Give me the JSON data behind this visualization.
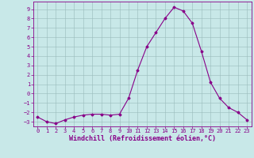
{
  "xlabel": "Windchill (Refroidissement éolien,°C)",
  "x": [
    0,
    1,
    2,
    3,
    4,
    5,
    6,
    7,
    8,
    9,
    10,
    11,
    12,
    13,
    14,
    15,
    16,
    17,
    18,
    19,
    20,
    21,
    22,
    23
  ],
  "y": [
    -2.5,
    -3.0,
    -3.2,
    -2.8,
    -2.5,
    -2.3,
    -2.2,
    -2.2,
    -2.3,
    -2.2,
    -0.5,
    2.5,
    5.0,
    6.5,
    8.0,
    9.2,
    8.8,
    7.5,
    4.5,
    1.2,
    -0.5,
    -1.5,
    -2.0,
    -2.8
  ],
  "line_color": "#880088",
  "marker": "D",
  "marker_size": 1.5,
  "bg_color": "#c8e8e8",
  "grid_color": "#99bbbb",
  "ylim": [
    -3.5,
    9.8
  ],
  "xlim": [
    -0.5,
    23.5
  ],
  "yticks": [
    -3,
    -2,
    -1,
    0,
    1,
    2,
    3,
    4,
    5,
    6,
    7,
    8,
    9
  ],
  "xticks": [
    0,
    1,
    2,
    3,
    4,
    5,
    6,
    7,
    8,
    9,
    10,
    11,
    12,
    13,
    14,
    15,
    16,
    17,
    18,
    19,
    20,
    21,
    22,
    23
  ],
  "tick_color": "#880088",
  "label_color": "#880088",
  "spine_color": "#880088",
  "font_size": 5.0,
  "xlabel_fontsize": 6.0,
  "linewidth": 0.8
}
